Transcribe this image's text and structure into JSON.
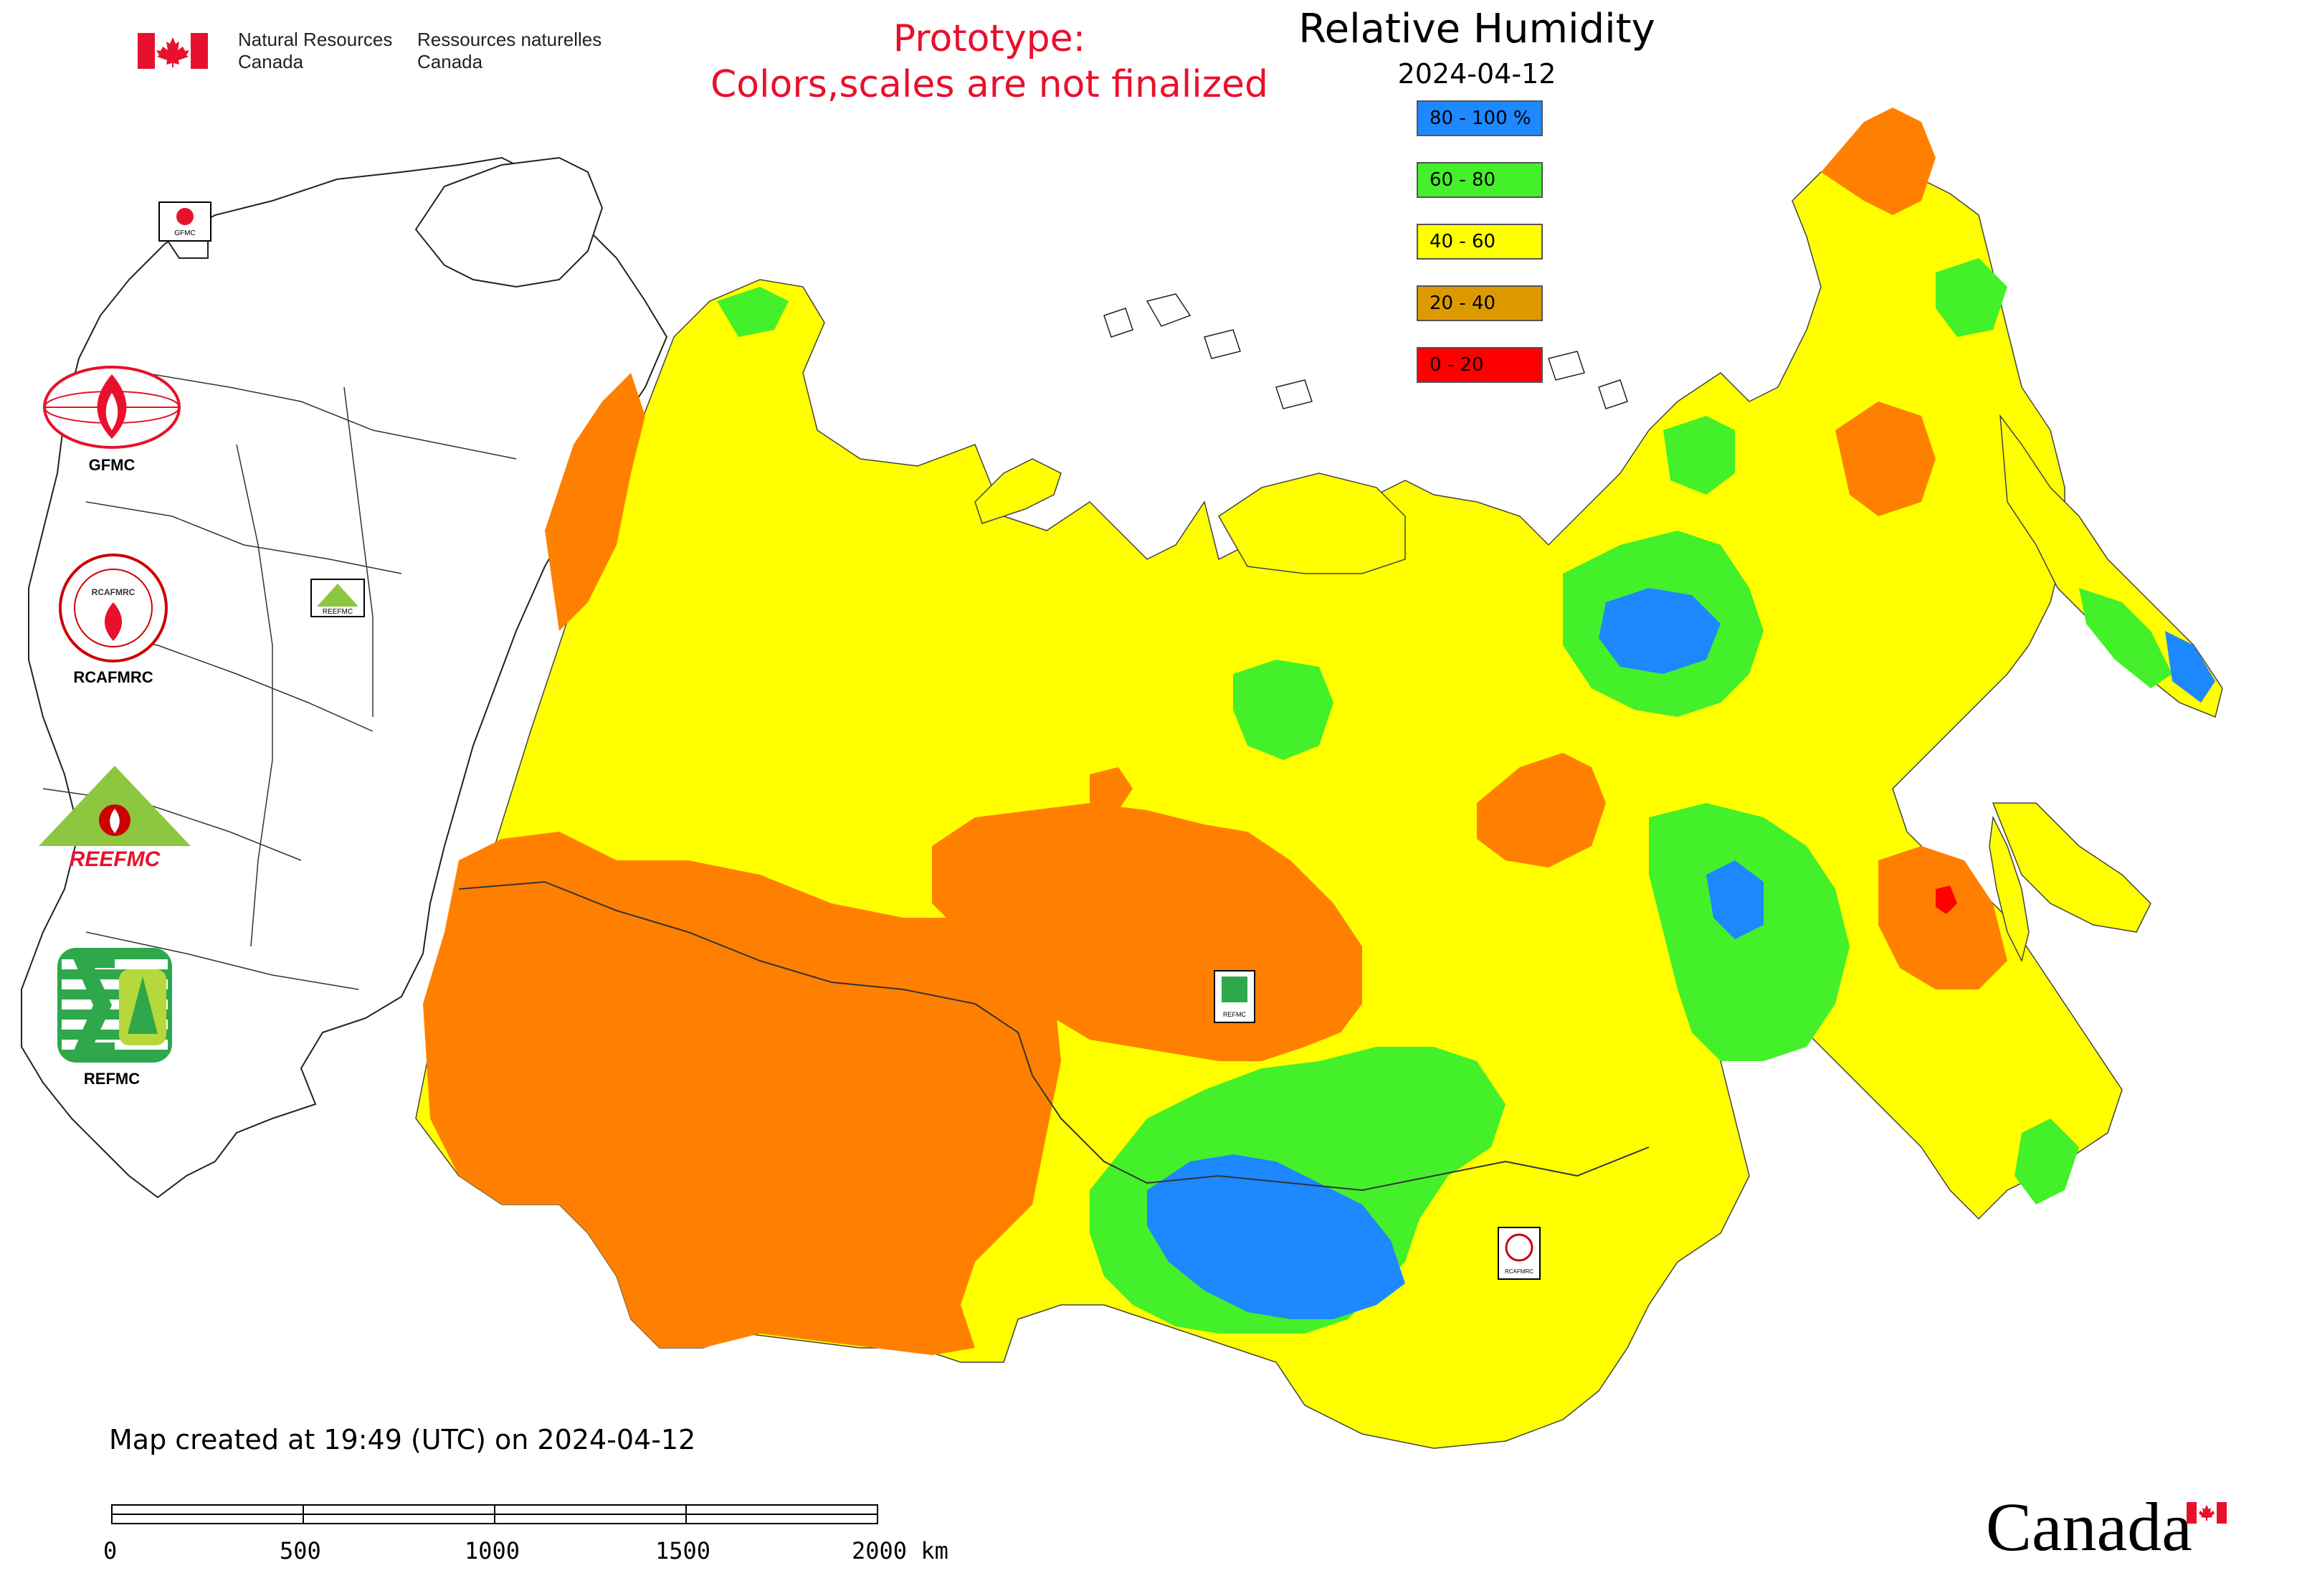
{
  "header": {
    "department_en_line1": "Natural Resources",
    "department_en_line2": "Canada",
    "department_fr_line1": "Ressources naturelles",
    "department_fr_line2": "Canada",
    "prototype_line1": "Prototype:",
    "prototype_line2": "Colors,scales are not finalized"
  },
  "map": {
    "title": "Relative Humidity",
    "date": "2024-04-12",
    "legend": [
      {
        "label": "80 - 100 %",
        "color": "#1e88ff"
      },
      {
        "label": "60 - 80",
        "color": "#44f02a"
      },
      {
        "label": "40 - 60",
        "color": "#ffff00"
      },
      {
        "label": "20 - 40",
        "color": "#dd9900"
      },
      {
        "label": "0 - 20",
        "color": "#ff0000"
      }
    ],
    "region_colors": {
      "humid": "#1e88ff",
      "moist": "#44f02a",
      "moderate": "#ffff00",
      "dry": "#ff8000",
      "very_dry": "#ff0000"
    },
    "map_markers": [
      "GFMC",
      "REEFMC",
      "REFMC",
      "RCAFMRC"
    ]
  },
  "logos": [
    {
      "label": "GFMC"
    },
    {
      "label": "RCAFMRC"
    },
    {
      "label": "REEFMC"
    },
    {
      "label": "REFMC"
    }
  ],
  "logo_texts": {
    "reefmc_mark": "REEFMC",
    "rcafmrc_mark": "RCAFMRC"
  },
  "footer": {
    "created_text": "Map created at 19:49 (UTC) on 2024-04-12",
    "scale_labels": [
      "0",
      "500",
      "1000",
      "1500",
      "2000 km"
    ],
    "wordmark": "Canada"
  }
}
